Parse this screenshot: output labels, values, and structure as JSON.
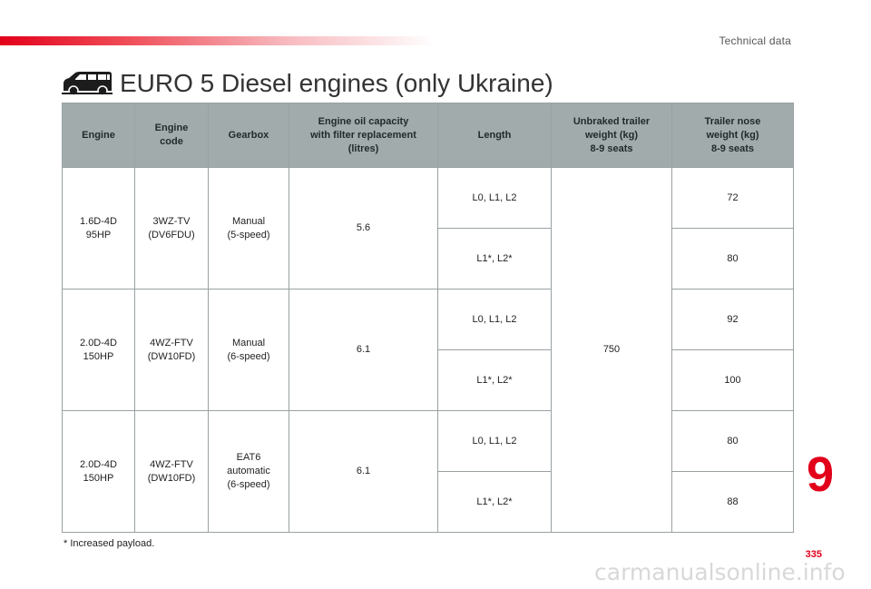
{
  "header": {
    "section_label": "Technical data"
  },
  "title": "EURO 5 Diesel engines (only Ukraine)",
  "table": {
    "columns": [
      "Engine",
      "Engine\ncode",
      "Gearbox",
      "Engine oil capacity\nwith filter replacement\n(litres)",
      "Length",
      "Unbraked trailer\nweight (kg)\n8-9 seats",
      "Trailer nose\nweight (kg)\n8-9 seats"
    ],
    "groups": [
      {
        "engine": "1.6D-4D\n95HP",
        "code": "3WZ-TV\n(DV6FDU)",
        "gearbox": "Manual\n(5-speed)",
        "oil": "5.6",
        "rows": [
          {
            "length": "L0, L1, L2",
            "nose": "72"
          },
          {
            "length": "L1*, L2*",
            "nose": "80"
          }
        ]
      },
      {
        "engine": "2.0D-4D\n150HP",
        "code": "4WZ-FTV\n(DW10FD)",
        "gearbox": "Manual\n(6-speed)",
        "oil": "6.1",
        "rows": [
          {
            "length": "L0, L1, L2",
            "nose": "92"
          },
          {
            "length": "L1*, L2*",
            "nose": "100"
          }
        ]
      },
      {
        "engine": "2.0D-4D\n150HP",
        "code": "4WZ-FTV\n(DW10FD)",
        "gearbox": "EAT6\nautomatic\n(6-speed)",
        "oil": "6.1",
        "rows": [
          {
            "length": "L0, L1, L2",
            "nose": "80"
          },
          {
            "length": "L1*, L2*",
            "nose": "88"
          }
        ]
      }
    ],
    "unbraked_trailer_weight": "750"
  },
  "footnote": "* Increased payload.",
  "chapter_number": "9",
  "page_number": "335",
  "watermark": "carmanualsonline.info",
  "colors": {
    "accent": "#e2001a",
    "header_bg": "#a1abab",
    "border": "#9aa1a3"
  },
  "icons": {
    "title_icon": "van-icon"
  }
}
